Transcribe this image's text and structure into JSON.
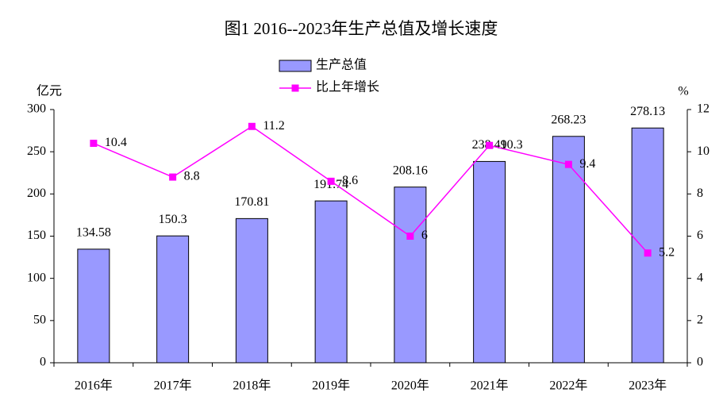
{
  "chart_data": {
    "type": "bar",
    "title": "图1  2016--2023年生产总值及增长速度",
    "y_label": "亿元",
    "y2_label": "%",
    "categories": [
      "2016年",
      "2017年",
      "2018年",
      "2019年",
      "2020年",
      "2021年",
      "2022年",
      "2023年"
    ],
    "series": [
      {
        "name": "生产总值",
        "type": "bar",
        "color": "#9999ff",
        "values": [
          134.58,
          150.3,
          170.81,
          191.74,
          208.16,
          238.49,
          268.23,
          278.13
        ]
      },
      {
        "name": "比上年增长",
        "type": "line",
        "axis": "y2",
        "color": "#ff00ff",
        "values": [
          10.4,
          8.8,
          11.2,
          8.6,
          6,
          10.3,
          9.4,
          5.2
        ]
      }
    ],
    "ylim": [
      0,
      300
    ],
    "yticks": [
      0,
      50,
      100,
      150,
      200,
      250,
      300
    ],
    "y2lim": [
      0,
      12
    ],
    "y2ticks": [
      0,
      2,
      4,
      6,
      8,
      10,
      12
    ],
    "legend": "top"
  }
}
